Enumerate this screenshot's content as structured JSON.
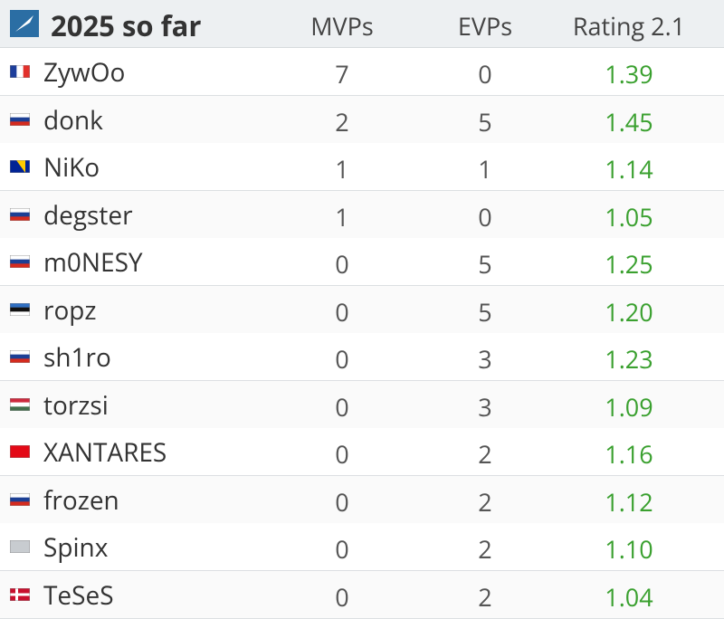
{
  "header": {
    "title": "2025 so far",
    "columns": [
      "MVPs",
      "EVPs",
      "Rating 2.1"
    ]
  },
  "table": {
    "rows": [
      [
        "ZywOo",
        "7",
        "0",
        "1.39"
      ],
      [
        "donk",
        "2",
        "5",
        "1.45"
      ],
      [
        "NiKo",
        "1",
        "1",
        "1.14"
      ],
      [
        "degster",
        "1",
        "0",
        "1.05"
      ],
      [
        "m0NESY",
        "0",
        "5",
        "1.25"
      ],
      [
        "ropz",
        "0",
        "5",
        "1.20"
      ],
      [
        "sh1ro",
        "0",
        "3",
        "1.23"
      ],
      [
        "torzsi",
        "0",
        "3",
        "1.09"
      ],
      [
        "XANTARES",
        "0",
        "2",
        "1.16"
      ],
      [
        "frozen",
        "0",
        "2",
        "1.12"
      ],
      [
        "Spinx",
        "0",
        "2",
        "1.10"
      ],
      [
        "TeSeS",
        "0",
        "2",
        "1.04"
      ]
    ]
  }
}
